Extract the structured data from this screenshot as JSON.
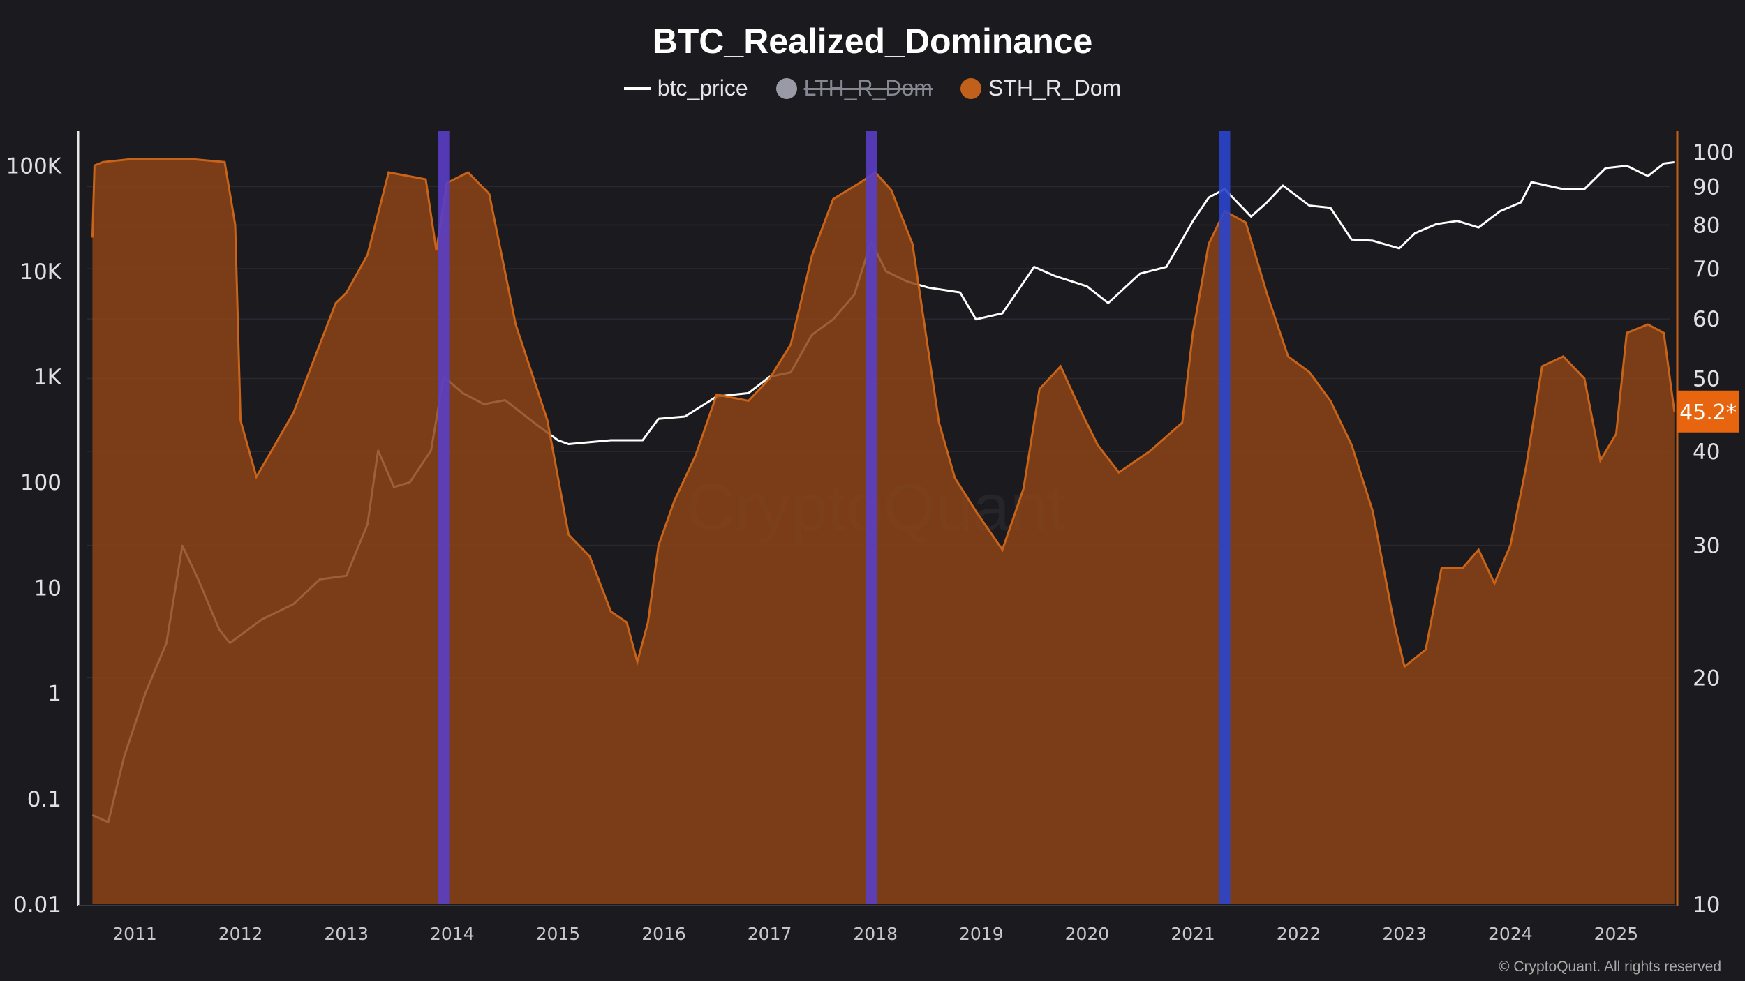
{
  "chart_data": {
    "type": "area",
    "title": "BTC_Realized_Dominance",
    "legend": [
      {
        "name": "btc_price",
        "color": "#ffffff",
        "marker": "line",
        "hidden": false
      },
      {
        "name": "LTH_R_Dom",
        "color": "#9a9aa6",
        "marker": "dot",
        "hidden": true
      },
      {
        "name": "STH_R_Dom",
        "color": "#c0601a",
        "marker": "dot",
        "hidden": false
      }
    ],
    "legend_position": "top-center",
    "x_ticks": [
      "2011",
      "2012",
      "2013",
      "2014",
      "2015",
      "2016",
      "2017",
      "2018",
      "2019",
      "2020",
      "2021",
      "2022",
      "2023",
      "2024",
      "2025"
    ],
    "y_left": {
      "scale": "log",
      "range": [
        0.01,
        200000
      ],
      "ticks": [
        "0.01",
        "0.1",
        "1",
        "10",
        "100",
        "1K",
        "10K",
        "100K"
      ]
    },
    "y_right": {
      "scale": "log",
      "range": [
        10,
        100
      ],
      "ticks": [
        "10",
        "20",
        "30",
        "40",
        "50",
        "60",
        "70",
        "80",
        "90",
        "100"
      ]
    },
    "current_value_label": "45.2*",
    "highlight_bands": [
      {
        "x": 2013.92,
        "color": "#5a3ec4"
      },
      {
        "x": 2017.96,
        "color": "#5a3ec4"
      },
      {
        "x": 2021.3,
        "color": "#2b44cc"
      }
    ],
    "series": [
      {
        "name": "btc_price",
        "axis": "left",
        "color": "#ffffff",
        "x": [
          2010.6,
          2010.75,
          2010.9,
          2011.1,
          2011.3,
          2011.45,
          2011.6,
          2011.8,
          2011.9,
          2012.2,
          2012.5,
          2012.75,
          2013.0,
          2013.2,
          2013.3,
          2013.45,
          2013.6,
          2013.8,
          2013.92,
          2014.1,
          2014.3,
          2014.5,
          2014.8,
          2015.0,
          2015.1,
          2015.5,
          2015.8,
          2015.95,
          2016.2,
          2016.5,
          2016.8,
          2017.0,
          2017.2,
          2017.4,
          2017.6,
          2017.8,
          2017.96,
          2018.1,
          2018.3,
          2018.5,
          2018.8,
          2018.95,
          2019.2,
          2019.5,
          2019.7,
          2020.0,
          2020.2,
          2020.5,
          2020.75,
          2021.0,
          2021.15,
          2021.3,
          2021.55,
          2021.7,
          2021.85,
          2022.1,
          2022.3,
          2022.5,
          2022.7,
          2022.95,
          2023.1,
          2023.3,
          2023.5,
          2023.7,
          2023.9,
          2024.1,
          2024.2,
          2024.5,
          2024.7,
          2024.9,
          2025.1,
          2025.3,
          2025.45,
          2025.55
        ],
        "y": [
          0.07,
          0.06,
          0.25,
          1,
          3,
          25,
          12,
          4,
          3,
          5,
          7,
          12,
          13,
          40,
          200,
          90,
          100,
          200,
          1000,
          700,
          550,
          600,
          350,
          250,
          230,
          250,
          250,
          400,
          420,
          650,
          700,
          1000,
          1100,
          2500,
          3500,
          6000,
          19000,
          10000,
          8000,
          7000,
          6300,
          3500,
          4000,
          11000,
          9000,
          7200,
          5000,
          9500,
          11000,
          30000,
          50000,
          60000,
          33000,
          45000,
          65000,
          42000,
          40000,
          20000,
          19500,
          16500,
          23000,
          28000,
          30000,
          26000,
          37000,
          45000,
          70000,
          60000,
          60000,
          95000,
          100000,
          80000,
          105000,
          108000
        ]
      },
      {
        "name": "STH_R_Dom",
        "axis": "right",
        "color": "#c0601a",
        "x": [
          2010.6,
          2010.62,
          2010.7,
          2011.0,
          2011.5,
          2011.85,
          2011.95,
          2012.0,
          2012.15,
          2012.5,
          2012.9,
          2013.0,
          2013.2,
          2013.4,
          2013.75,
          2013.85,
          2013.95,
          2014.15,
          2014.35,
          2014.6,
          2014.9,
          2015.1,
          2015.3,
          2015.5,
          2015.65,
          2015.75,
          2015.85,
          2015.95,
          2016.1,
          2016.3,
          2016.5,
          2016.8,
          2017.0,
          2017.2,
          2017.4,
          2017.6,
          2017.85,
          2018.0,
          2018.15,
          2018.35,
          2018.6,
          2018.75,
          2018.95,
          2019.2,
          2019.4,
          2019.55,
          2019.75,
          2019.95,
          2020.1,
          2020.3,
          2020.6,
          2020.9,
          2021.0,
          2021.15,
          2021.3,
          2021.5,
          2021.7,
          2021.9,
          2022.1,
          2022.3,
          2022.5,
          2022.7,
          2022.9,
          2023.0,
          2023.2,
          2023.35,
          2023.55,
          2023.7,
          2023.85,
          2024.0,
          2024.15,
          2024.3,
          2024.5,
          2024.7,
          2024.85,
          2025.0,
          2025.1,
          2025.3,
          2025.45,
          2025.55
        ],
        "y": [
          77,
          96,
          97,
          98,
          98,
          97,
          80,
          44,
          37,
          45,
          63,
          65,
          73,
          94,
          92,
          74,
          91,
          94,
          88,
          59,
          44,
          31,
          29,
          24.5,
          23.7,
          21,
          23.7,
          30,
          34.4,
          39.5,
          47.6,
          46.7,
          50,
          55.5,
          72.8,
          86.6,
          91,
          94,
          89,
          75.5,
          43.7,
          36.9,
          33.3,
          29.6,
          35.7,
          48.4,
          51.9,
          45,
          40.8,
          37.5,
          40.1,
          43.7,
          57.5,
          75.5,
          83.5,
          80.6,
          64.8,
          53.5,
          51,
          46.7,
          40.8,
          33.3,
          23.7,
          20.7,
          21.8,
          28,
          28,
          29.6,
          26.7,
          30,
          38.2,
          51.9,
          53.5,
          50,
          38.9,
          42.2,
          57.5,
          59,
          57.5,
          45.2
        ]
      }
    ]
  },
  "watermark": "CryptoQuant",
  "footer": "© CryptoQuant. All rights reserved"
}
